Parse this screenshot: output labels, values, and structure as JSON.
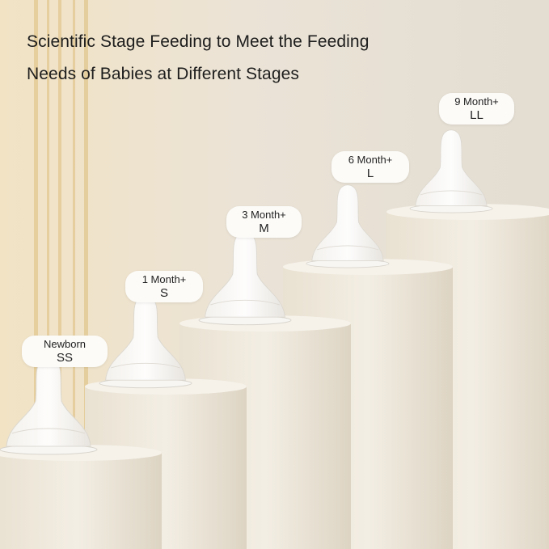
{
  "headline": {
    "line1": "Scientific Stage Feeding to Meet the Feeding",
    "line2": "Needs of Babies at Different Stages"
  },
  "stages": [
    {
      "age": "Newborn",
      "size": "SS"
    },
    {
      "age": "1 Month+",
      "size": "S"
    },
    {
      "age": "3 Month+",
      "size": "M"
    },
    {
      "age": "6 Month+",
      "size": "L"
    },
    {
      "age": "9 Month+",
      "size": "LL"
    }
  ],
  "colors": {
    "pillar": "#ede6d8",
    "background": "#e8e0d2",
    "accent_stripe": "#e1c48c"
  }
}
